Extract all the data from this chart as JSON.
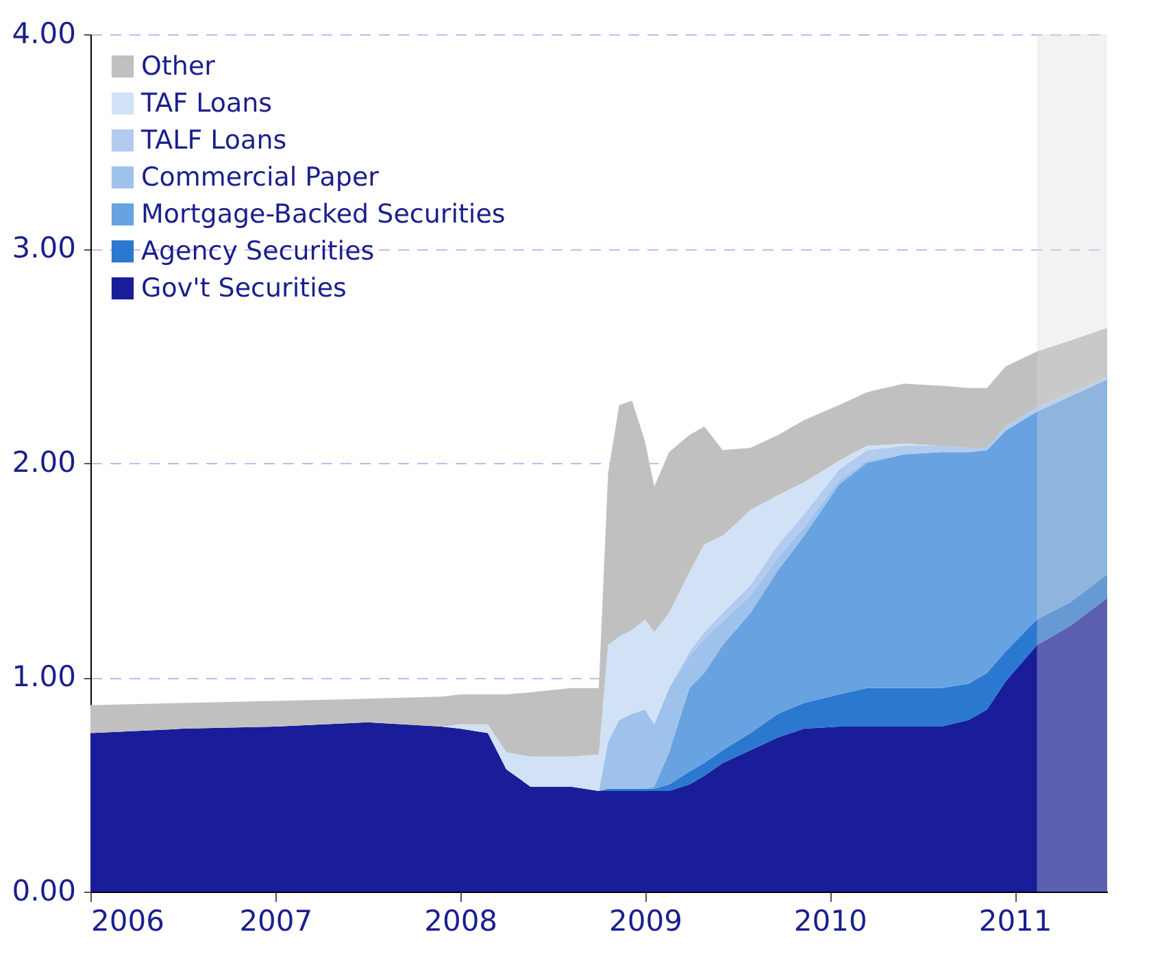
{
  "chart_data": {
    "type": "area",
    "stacked": true,
    "x": [
      2006.0,
      2006.5,
      2007.0,
      2007.5,
      2007.9,
      2008.0,
      2008.15,
      2008.25,
      2008.38,
      2008.6,
      2008.75,
      2008.8,
      2008.86,
      2008.93,
      2009.0,
      2009.05,
      2009.13,
      2009.24,
      2009.32,
      2009.42,
      2009.57,
      2009.72,
      2009.86,
      2010.05,
      2010.2,
      2010.4,
      2010.6,
      2010.75,
      2010.85,
      2010.95,
      2011.12,
      2011.3,
      2011.5
    ],
    "series": [
      {
        "name": "Gov't Securities",
        "color": "#1a1d9a",
        "values": [
          0.74,
          0.76,
          0.77,
          0.79,
          0.77,
          0.76,
          0.74,
          0.57,
          0.49,
          0.49,
          0.47,
          0.47,
          0.47,
          0.47,
          0.47,
          0.47,
          0.47,
          0.5,
          0.54,
          0.6,
          0.66,
          0.72,
          0.76,
          0.77,
          0.77,
          0.77,
          0.77,
          0.8,
          0.85,
          0.98,
          1.15,
          1.24,
          1.37
        ]
      },
      {
        "name": "Agency Securities",
        "color": "#2a78d0",
        "values": [
          null,
          null,
          null,
          null,
          null,
          null,
          null,
          null,
          null,
          null,
          0,
          0.01,
          0.01,
          0.01,
          0.01,
          0.01,
          0.03,
          0.06,
          0.06,
          0.06,
          0.08,
          0.11,
          0.12,
          0.15,
          0.18,
          0.18,
          0.18,
          0.17,
          0.17,
          0.14,
          0.12,
          0.11,
          0.11
        ]
      },
      {
        "name": "Mortgage-Backed Securities",
        "color": "#68a2e0",
        "values": [
          null,
          null,
          null,
          null,
          null,
          null,
          null,
          null,
          null,
          null,
          null,
          null,
          null,
          null,
          0,
          0.01,
          0.15,
          0.39,
          0.42,
          0.49,
          0.56,
          0.67,
          0.78,
          0.98,
          1.05,
          1.09,
          1.1,
          1.08,
          1.04,
          1.03,
          0.97,
          0.96,
          0.91
        ]
      },
      {
        "name": "Commercial Paper",
        "color": "#9fc2ec",
        "values": [
          null,
          null,
          null,
          null,
          null,
          null,
          null,
          null,
          null,
          null,
          0,
          0.22,
          0.32,
          0.35,
          0.37,
          0.29,
          0.3,
          0.15,
          0.16,
          0.11,
          0.08,
          0.06,
          0.04,
          0.02,
          0.01,
          0,
          0,
          null,
          null,
          null,
          null,
          null,
          null
        ]
      },
      {
        "name": "TALF Loans",
        "color": "#b2cbee",
        "values": [
          null,
          null,
          null,
          null,
          null,
          null,
          null,
          null,
          null,
          null,
          null,
          null,
          null,
          null,
          null,
          null,
          0,
          0.02,
          0.03,
          0.04,
          0.05,
          0.06,
          0.06,
          0.05,
          0.05,
          0.04,
          0.03,
          0.02,
          0.01,
          0.02,
          0.02,
          0.02,
          0.01
        ]
      },
      {
        "name": "TAF Loans",
        "color": "#d2e2f6",
        "values": [
          null,
          null,
          null,
          null,
          0,
          0.02,
          0.04,
          0.08,
          0.14,
          0.14,
          0.17,
          0.45,
          0.39,
          0.39,
          0.42,
          0.43,
          0.35,
          0.37,
          0.41,
          0.36,
          0.35,
          0.23,
          0.15,
          0.04,
          0.02,
          0.01,
          0,
          0,
          null,
          null,
          null,
          null,
          null
        ]
      },
      {
        "name": "Other",
        "color": "#c0c0c0",
        "values": [
          0.13,
          0.12,
          0.12,
          0.11,
          0.14,
          0.14,
          0.14,
          0.27,
          0.3,
          0.32,
          0.31,
          0.8,
          1.08,
          1.07,
          0.83,
          0.68,
          0.75,
          0.64,
          0.55,
          0.4,
          0.29,
          0.28,
          0.29,
          0.26,
          0.25,
          0.28,
          0.28,
          0.28,
          0.28,
          0.28,
          0.26,
          0.24,
          0.23
        ]
      }
    ],
    "xlim": [
      2006,
      2011.5
    ],
    "xticks": [
      2006,
      2007,
      2008,
      2009,
      2010,
      2011
    ],
    "ylim": [
      0,
      4
    ],
    "yticks": [
      {
        "value": 0,
        "label": "0.00"
      },
      {
        "value": 1,
        "label": "1.00"
      },
      {
        "value": 2,
        "label": "2.00"
      },
      {
        "value": 3,
        "label": "3.00"
      },
      {
        "value": 4,
        "label": "4.00"
      }
    ],
    "bands": [
      {
        "axis": "x",
        "from": 2011.12,
        "to": 2011.5,
        "color": "#d9d9d9"
      }
    ],
    "grid": "y",
    "legend": "top left"
  }
}
